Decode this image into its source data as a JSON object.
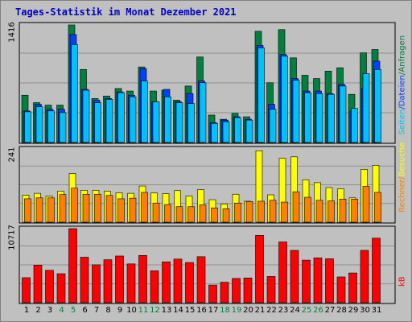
{
  "title": "Tages-Statistik im Monat Dezember 2021",
  "legend": {
    "top": [
      {
        "label": "Anfragen",
        "color": "#008040"
      },
      {
        "label": "/",
        "color": "#008040"
      },
      {
        "label": "Dateien",
        "color": "#0040ff"
      },
      {
        "label": "/",
        "color": "#0040ff"
      },
      {
        "label": "Seiten",
        "color": "#00c0ff"
      }
    ],
    "middle": [
      {
        "label": "Besuche",
        "color": "#ffff00"
      },
      {
        "label": "/",
        "color": "#ff8000"
      },
      {
        "label": "Rechner",
        "color": "#ff8000"
      }
    ],
    "bottom": [
      {
        "label": "kB",
        "color": "#ff0000"
      }
    ]
  },
  "colors": {
    "background": "#c0c0c0",
    "hits": "#008040",
    "files": "#0040ff",
    "pages": "#00c0ff",
    "visits": "#ffff00",
    "sites": "#ff8000",
    "kbytes": "#ff0000",
    "weekend_day": "#008040",
    "weekday": "#000000"
  },
  "chart_data": [
    {
      "type": "bar",
      "title": "",
      "ymax_label": "1416",
      "ylim": [
        0,
        1416
      ],
      "categories": [
        "1",
        "2",
        "3",
        "4",
        "5",
        "6",
        "7",
        "8",
        "9",
        "10",
        "11",
        "12",
        "13",
        "14",
        "15",
        "16",
        "17",
        "18",
        "19",
        "20",
        "21",
        "22",
        "23",
        "24",
        "25",
        "26",
        "27",
        "28",
        "29",
        "30",
        "31"
      ],
      "weekend": [
        "4",
        "5",
        "11",
        "12",
        "18",
        "19",
        "25",
        "26"
      ],
      "series": [
        {
          "name": "Anfragen",
          "values": [
            570,
            480,
            450,
            450,
            1416,
            880,
            530,
            560,
            650,
            620,
            910,
            620,
            630,
            510,
            680,
            1030,
            330,
            280,
            350,
            310,
            1340,
            720,
            1360,
            1020,
            810,
            770,
            860,
            900,
            580,
            1080,
            1120
          ]
        },
        {
          "name": "Dateien",
          "values": [
            380,
            460,
            400,
            400,
            1300,
            640,
            510,
            530,
            610,
            570,
            890,
            490,
            640,
            490,
            590,
            740,
            240,
            270,
            310,
            280,
            1170,
            460,
            1060,
            770,
            620,
            620,
            590,
            700,
            380,
            650,
            980
          ]
        },
        {
          "name": "Seiten",
          "values": [
            370,
            430,
            380,
            360,
            1180,
            630,
            480,
            520,
            600,
            550,
            740,
            490,
            550,
            480,
            470,
            720,
            230,
            250,
            300,
            270,
            1140,
            400,
            1040,
            750,
            600,
            590,
            580,
            680,
            410,
            830,
            880
          ]
        }
      ]
    },
    {
      "type": "bar",
      "title": "",
      "ymax_label": "241",
      "ylim": [
        0,
        241
      ],
      "categories": [
        "1",
        "2",
        "3",
        "4",
        "5",
        "6",
        "7",
        "8",
        "9",
        "10",
        "11",
        "12",
        "13",
        "14",
        "15",
        "16",
        "17",
        "18",
        "19",
        "20",
        "21",
        "22",
        "23",
        "24",
        "25",
        "26",
        "27",
        "28",
        "29",
        "30",
        "31"
      ],
      "series": [
        {
          "name": "Besuche",
          "values": [
            89,
            95,
            86,
            102,
            160,
            105,
            105,
            102,
            97,
            95,
            119,
            96,
            94,
            104,
            86,
            107,
            74,
            60,
            92,
            69,
            235,
            90,
            210,
            215,
            139,
            130,
            114,
            110,
            80,
            174,
            187
          ]
        },
        {
          "name": "Rechner",
          "values": [
            77,
            80,
            80,
            91,
            112,
            92,
            92,
            88,
            77,
            79,
            98,
            63,
            58,
            51,
            51,
            57,
            47,
            44,
            63,
            68,
            69,
            72,
            66,
            100,
            82,
            72,
            70,
            76,
            76,
            118,
            98
          ]
        }
      ]
    },
    {
      "type": "bar",
      "title": "",
      "ymax_label": "10717",
      "ylim": [
        0,
        10717
      ],
      "categories": [
        "1",
        "2",
        "3",
        "4",
        "5",
        "6",
        "7",
        "8",
        "9",
        "10",
        "11",
        "12",
        "13",
        "14",
        "15",
        "16",
        "17",
        "18",
        "19",
        "20",
        "21",
        "22",
        "23",
        "24",
        "25",
        "26",
        "27",
        "28",
        "29",
        "30",
        "31"
      ],
      "series": [
        {
          "name": "kB",
          "values": [
            3620,
            5430,
            4690,
            4190,
            10717,
            6580,
            5480,
            6220,
            6760,
            5610,
            6840,
            4610,
            5910,
            6310,
            5810,
            6660,
            2550,
            2960,
            3510,
            3580,
            9740,
            3790,
            8790,
            7570,
            6160,
            6480,
            6350,
            3730,
            4300,
            7570,
            9340
          ]
        }
      ]
    }
  ]
}
